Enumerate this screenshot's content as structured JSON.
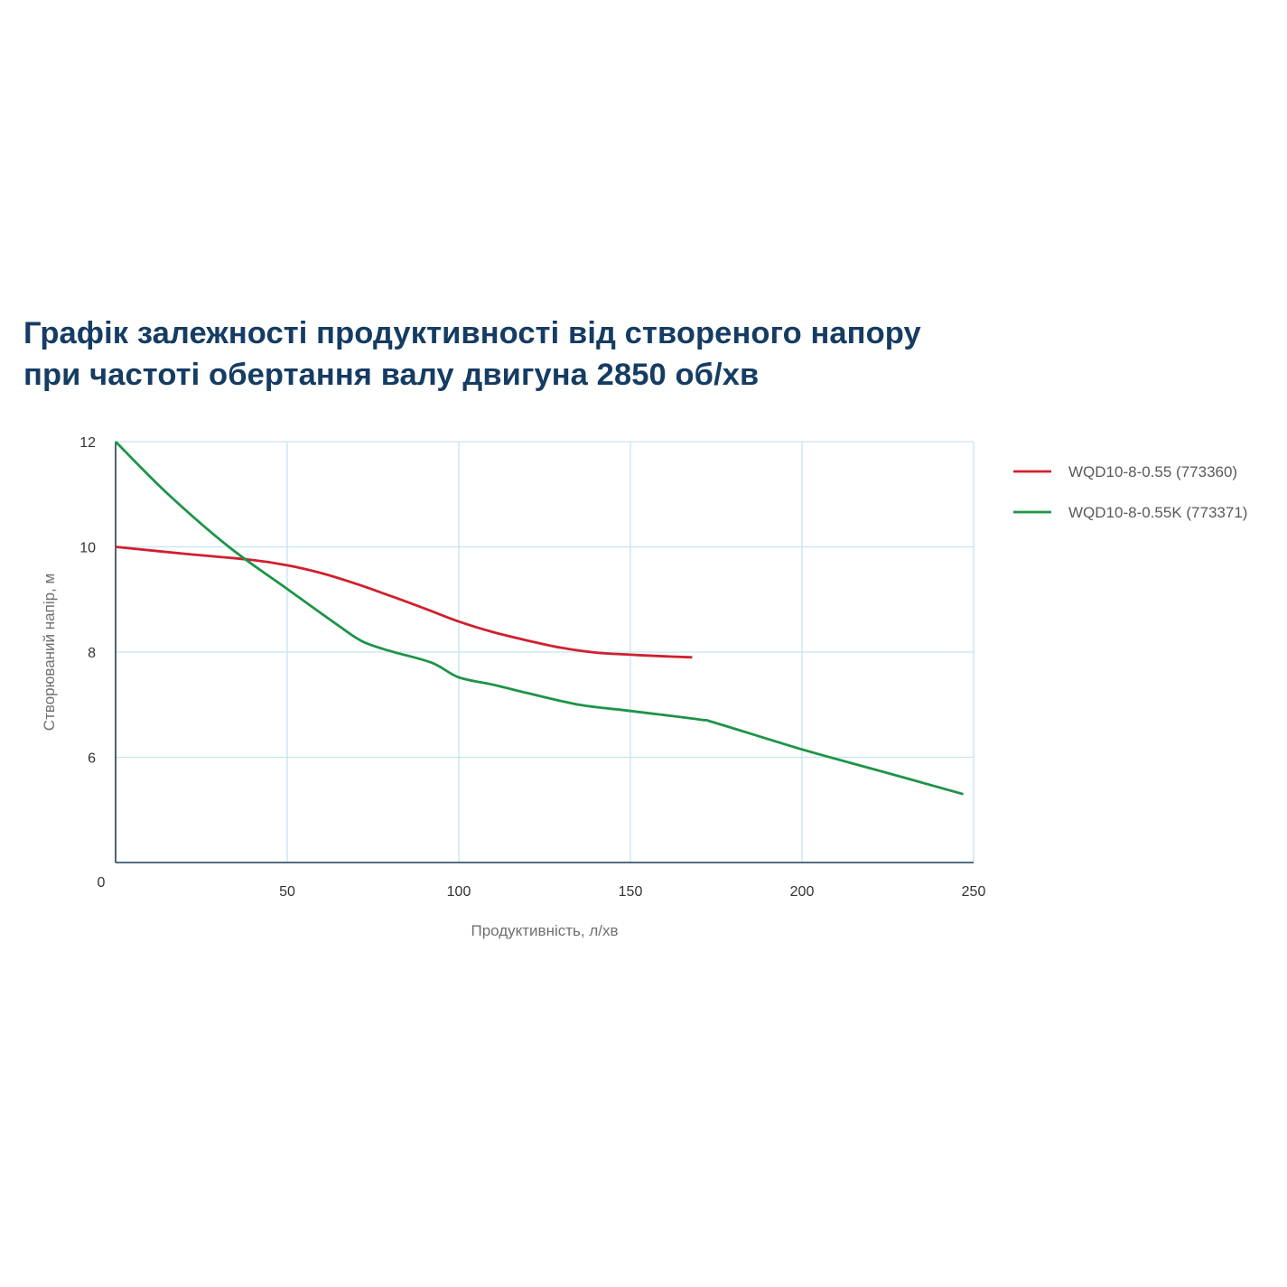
{
  "title": {
    "line1": "Графік залежності продуктивності від створеного напору",
    "line2": "при частоті обертання валу двигуна 2850 об/хв"
  },
  "chart_data": {
    "type": "line",
    "title": "Графік залежності продуктивності від створеного напору при частоті обертання валу двигуна 2850 об/хв",
    "xlabel": "Продуктивність, л/хв",
    "ylabel": "Створюваний напір, м",
    "xlim": [
      0,
      250
    ],
    "ylim": [
      4,
      12
    ],
    "x_ticks": [
      50,
      100,
      150,
      200,
      250
    ],
    "y_ticks": [
      6,
      8,
      10,
      12
    ],
    "origin_label": "0",
    "grid": true,
    "legend_position": "right",
    "series": [
      {
        "name": "WQD10-8-0.55 (773360)",
        "color": "#d0202e",
        "points": [
          [
            0,
            10
          ],
          [
            20,
            9.87
          ],
          [
            40,
            9.75
          ],
          [
            50,
            9.65
          ],
          [
            60,
            9.5
          ],
          [
            70,
            9.3
          ],
          [
            80,
            9.07
          ],
          [
            90,
            8.83
          ],
          [
            100,
            8.58
          ],
          [
            110,
            8.38
          ],
          [
            120,
            8.22
          ],
          [
            130,
            8.08
          ],
          [
            140,
            7.99
          ],
          [
            150,
            7.95
          ],
          [
            160,
            7.92
          ],
          [
            168,
            7.9
          ]
        ]
      },
      {
        "name": "WQD10-8-0.55K (773371)",
        "color": "#1d9447",
        "points": [
          [
            0,
            12
          ],
          [
            15,
            11.02
          ],
          [
            33,
            10
          ],
          [
            50,
            9.2
          ],
          [
            65,
            8.5
          ],
          [
            72,
            8.2
          ],
          [
            80,
            8.02
          ],
          [
            92,
            7.8
          ],
          [
            100,
            7.52
          ],
          [
            110,
            7.38
          ],
          [
            120,
            7.22
          ],
          [
            135,
            7
          ],
          [
            150,
            6.88
          ],
          [
            170,
            6.72
          ],
          [
            175,
            6.65
          ],
          [
            200,
            6.15
          ],
          [
            225,
            5.7
          ],
          [
            247,
            5.3
          ]
        ]
      }
    ]
  }
}
